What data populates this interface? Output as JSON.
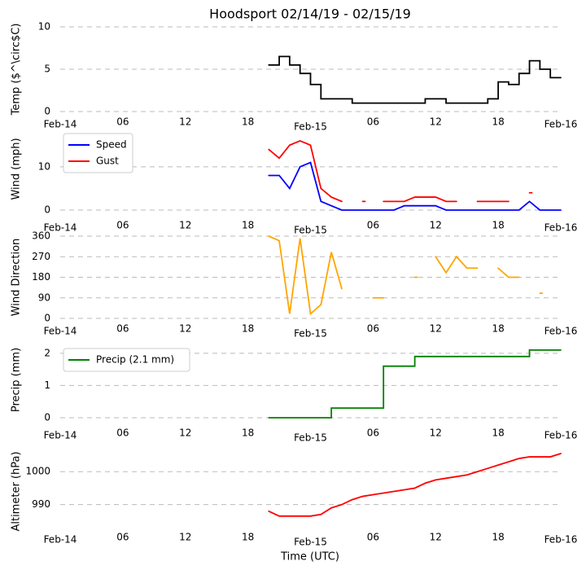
{
  "chart_data": [
    {
      "type": "line",
      "title": "Hoodsport 02/14/19 - 02/15/19",
      "ylabel": "Temp ($^\\circ$C)",
      "xlim": [
        "2019-02-14 00:00",
        "2019-02-16 00:00"
      ],
      "xticks": [
        {
          "value": "2019-02-14 00:00",
          "label": "Feb-14"
        },
        {
          "value": "2019-02-14 06:00",
          "label": "06"
        },
        {
          "value": "2019-02-14 12:00",
          "label": "12"
        },
        {
          "value": "2019-02-14 18:00",
          "label": "18"
        },
        {
          "value": "2019-02-15 00:00",
          "label": "Feb-15"
        },
        {
          "value": "2019-02-15 06:00",
          "label": "06"
        },
        {
          "value": "2019-02-15 12:00",
          "label": "12"
        },
        {
          "value": "2019-02-15 18:00",
          "label": "18"
        },
        {
          "value": "2019-02-16 00:00",
          "label": "Feb-16"
        }
      ],
      "ylim": [
        0,
        10
      ],
      "yticks": [
        0,
        5,
        10
      ],
      "grid": true,
      "drawstyle": "steps-post",
      "x": [
        "2019-02-14 20:00",
        "2019-02-14 21:00",
        "2019-02-14 22:00",
        "2019-02-14 23:00",
        "2019-02-15 00:00",
        "2019-02-15 01:00",
        "2019-02-15 02:00",
        "2019-02-15 03:00",
        "2019-02-15 04:00",
        "2019-02-15 05:00",
        "2019-02-15 06:00",
        "2019-02-15 07:00",
        "2019-02-15 08:00",
        "2019-02-15 09:00",
        "2019-02-15 10:00",
        "2019-02-15 11:00",
        "2019-02-15 12:00",
        "2019-02-15 13:00",
        "2019-02-15 14:00",
        "2019-02-15 15:00",
        "2019-02-15 16:00",
        "2019-02-15 17:00",
        "2019-02-15 18:00",
        "2019-02-15 19:00",
        "2019-02-15 20:00",
        "2019-02-15 21:00",
        "2019-02-15 22:00",
        "2019-02-15 23:00",
        "2019-02-16 00:00"
      ],
      "series": [
        {
          "color": "#000000",
          "values": [
            5.5,
            6.5,
            5.5,
            4.5,
            3.2,
            1.5,
            1.5,
            1.5,
            1,
            1,
            1,
            1,
            1,
            1,
            1,
            1.5,
            1.5,
            1,
            1,
            1,
            1,
            1.5,
            3.5,
            3.2,
            4.5,
            6,
            5,
            4,
            4
          ]
        }
      ]
    },
    {
      "type": "line",
      "ylabel": "Wind (mph)",
      "legend": "upper left",
      "xlim": [
        "2019-02-14 00:00",
        "2019-02-16 00:00"
      ],
      "xticks": [
        {
          "value": "2019-02-14 00:00",
          "label": "Feb-14"
        },
        {
          "value": "2019-02-14 06:00",
          "label": "06"
        },
        {
          "value": "2019-02-14 12:00",
          "label": "12"
        },
        {
          "value": "2019-02-14 18:00",
          "label": "18"
        },
        {
          "value": "2019-02-15 00:00",
          "label": "Feb-15"
        },
        {
          "value": "2019-02-15 06:00",
          "label": "06"
        },
        {
          "value": "2019-02-15 12:00",
          "label": "12"
        },
        {
          "value": "2019-02-15 18:00",
          "label": "18"
        },
        {
          "value": "2019-02-16 00:00",
          "label": "Feb-16"
        }
      ],
      "ylim": [
        0,
        19
      ],
      "yticks": [
        0,
        10
      ],
      "grid": true,
      "x": [
        "2019-02-14 20:00",
        "2019-02-14 21:00",
        "2019-02-14 22:00",
        "2019-02-14 23:00",
        "2019-02-15 00:00",
        "2019-02-15 01:00",
        "2019-02-15 02:00",
        "2019-02-15 03:00",
        "2019-02-15 04:00",
        "2019-02-15 05:00",
        "2019-02-15 06:00",
        "2019-02-15 07:00",
        "2019-02-15 08:00",
        "2019-02-15 09:00",
        "2019-02-15 10:00",
        "2019-02-15 11:00",
        "2019-02-15 12:00",
        "2019-02-15 13:00",
        "2019-02-15 14:00",
        "2019-02-15 15:00",
        "2019-02-15 16:00",
        "2019-02-15 17:00",
        "2019-02-15 18:00",
        "2019-02-15 19:00",
        "2019-02-15 20:00",
        "2019-02-15 21:00",
        "2019-02-15 22:00",
        "2019-02-15 23:00",
        "2019-02-16 00:00"
      ],
      "series": [
        {
          "name": "Speed",
          "color": "#0000ff",
          "values": [
            8,
            8,
            5,
            10,
            11,
            2,
            1,
            0,
            0,
            0,
            0,
            0,
            0,
            1,
            1,
            1,
            1,
            0,
            0,
            0,
            0,
            0,
            0,
            0,
            0,
            2,
            0,
            0,
            0
          ]
        },
        {
          "name": "Gust",
          "color": "#ff0000",
          "values": [
            14,
            12,
            15,
            16,
            15,
            5,
            3,
            2,
            null,
            2,
            null,
            2,
            2,
            2,
            3,
            3,
            3,
            2,
            2,
            null,
            2,
            2,
            2,
            2,
            null,
            4,
            null,
            null,
            null
          ]
        }
      ]
    },
    {
      "type": "line",
      "ylabel": "Wind Direction",
      "xlim": [
        "2019-02-14 00:00",
        "2019-02-16 00:00"
      ],
      "xticks": [
        {
          "value": "2019-02-14 00:00",
          "label": "Feb-14"
        },
        {
          "value": "2019-02-14 06:00",
          "label": "06"
        },
        {
          "value": "2019-02-14 12:00",
          "label": "12"
        },
        {
          "value": "2019-02-14 18:00",
          "label": "18"
        },
        {
          "value": "2019-02-15 00:00",
          "label": "Feb-15"
        },
        {
          "value": "2019-02-15 06:00",
          "label": "06"
        },
        {
          "value": "2019-02-15 12:00",
          "label": "12"
        },
        {
          "value": "2019-02-15 18:00",
          "label": "18"
        },
        {
          "value": "2019-02-16 00:00",
          "label": "Feb-16"
        }
      ],
      "ylim": [
        0,
        360
      ],
      "yticks": [
        0,
        90,
        180,
        270,
        360
      ],
      "grid": true,
      "x": [
        "2019-02-14 20:00",
        "2019-02-14 21:00",
        "2019-02-14 22:00",
        "2019-02-14 23:00",
        "2019-02-15 00:00",
        "2019-02-15 01:00",
        "2019-02-15 02:00",
        "2019-02-15 03:00",
        "2019-02-15 04:00",
        "2019-02-15 05:00",
        "2019-02-15 06:00",
        "2019-02-15 07:00",
        "2019-02-15 08:00",
        "2019-02-15 09:00",
        "2019-02-15 10:00",
        "2019-02-15 11:00",
        "2019-02-15 12:00",
        "2019-02-15 13:00",
        "2019-02-15 14:00",
        "2019-02-15 15:00",
        "2019-02-15 16:00",
        "2019-02-15 17:00",
        "2019-02-15 18:00",
        "2019-02-15 19:00",
        "2019-02-15 20:00",
        "2019-02-15 21:00",
        "2019-02-15 22:00",
        "2019-02-15 23:00",
        "2019-02-16 00:00"
      ],
      "series": [
        {
          "color": "#ffa500",
          "values": [
            360,
            340,
            20,
            350,
            20,
            60,
            290,
            130,
            null,
            null,
            90,
            90,
            null,
            null,
            180,
            null,
            270,
            200,
            270,
            220,
            220,
            null,
            220,
            180,
            180,
            null,
            110,
            null,
            null
          ]
        }
      ]
    },
    {
      "type": "line",
      "ylabel": "Precip (mm)",
      "legend": "upper left",
      "drawstyle": "steps-post",
      "xlim": [
        "2019-02-14 00:00",
        "2019-02-16 00:00"
      ],
      "xticks": [
        {
          "value": "2019-02-14 00:00",
          "label": "Feb-14"
        },
        {
          "value": "2019-02-14 06:00",
          "label": "06"
        },
        {
          "value": "2019-02-14 12:00",
          "label": "12"
        },
        {
          "value": "2019-02-14 18:00",
          "label": "18"
        },
        {
          "value": "2019-02-15 00:00",
          "label": "Feb-15"
        },
        {
          "value": "2019-02-15 06:00",
          "label": "06"
        },
        {
          "value": "2019-02-15 12:00",
          "label": "12"
        },
        {
          "value": "2019-02-15 18:00",
          "label": "18"
        },
        {
          "value": "2019-02-16 00:00",
          "label": "Feb-16"
        }
      ],
      "ylim": [
        0,
        2.35
      ],
      "yticks": [
        0,
        1,
        2
      ],
      "grid": true,
      "x": [
        "2019-02-14 20:00",
        "2019-02-14 21:00",
        "2019-02-14 22:00",
        "2019-02-14 23:00",
        "2019-02-15 00:00",
        "2019-02-15 01:00",
        "2019-02-15 02:00",
        "2019-02-15 03:00",
        "2019-02-15 04:00",
        "2019-02-15 05:00",
        "2019-02-15 06:00",
        "2019-02-15 07:00",
        "2019-02-15 08:00",
        "2019-02-15 09:00",
        "2019-02-15 10:00",
        "2019-02-15 11:00",
        "2019-02-15 12:00",
        "2019-02-15 13:00",
        "2019-02-15 14:00",
        "2019-02-15 15:00",
        "2019-02-15 16:00",
        "2019-02-15 17:00",
        "2019-02-15 18:00",
        "2019-02-15 19:00",
        "2019-02-15 20:00",
        "2019-02-15 21:00",
        "2019-02-15 22:00",
        "2019-02-15 23:00",
        "2019-02-16 00:00"
      ],
      "series": [
        {
          "name": "Precip (2.1 mm)",
          "color": "#008000",
          "values": [
            0,
            0,
            0,
            0,
            0,
            0,
            0.3,
            0.3,
            0.3,
            0.3,
            0.3,
            1.6,
            1.6,
            1.6,
            1.9,
            1.9,
            1.9,
            1.9,
            1.9,
            1.9,
            1.9,
            1.9,
            1.9,
            1.9,
            1.9,
            2.1,
            2.1,
            2.1,
            2.1
          ]
        }
      ]
    },
    {
      "type": "line",
      "ylabel": "Altimeter (hPa)",
      "xlabel": "Time (UTC)",
      "xlim": [
        "2019-02-14 00:00",
        "2019-02-16 00:00"
      ],
      "xticks": [
        {
          "value": "2019-02-14 00:00",
          "label": "Feb-14"
        },
        {
          "value": "2019-02-14 06:00",
          "label": "06"
        },
        {
          "value": "2019-02-14 12:00",
          "label": "12"
        },
        {
          "value": "2019-02-14 18:00",
          "label": "18"
        },
        {
          "value": "2019-02-15 00:00",
          "label": "Feb-15"
        },
        {
          "value": "2019-02-15 06:00",
          "label": "06"
        },
        {
          "value": "2019-02-15 12:00",
          "label": "12"
        },
        {
          "value": "2019-02-15 18:00",
          "label": "18"
        },
        {
          "value": "2019-02-16 00:00",
          "label": "Feb-16"
        }
      ],
      "ylim": [
        982.5,
        1005.5
      ],
      "yticks": [
        990,
        1000
      ],
      "grid": true,
      "x": [
        "2019-02-14 20:00",
        "2019-02-14 21:00",
        "2019-02-14 22:00",
        "2019-02-14 23:00",
        "2019-02-15 00:00",
        "2019-02-15 01:00",
        "2019-02-15 02:00",
        "2019-02-15 03:00",
        "2019-02-15 04:00",
        "2019-02-15 05:00",
        "2019-02-15 06:00",
        "2019-02-15 07:00",
        "2019-02-15 08:00",
        "2019-02-15 09:00",
        "2019-02-15 10:00",
        "2019-02-15 11:00",
        "2019-02-15 12:00",
        "2019-02-15 13:00",
        "2019-02-15 14:00",
        "2019-02-15 15:00",
        "2019-02-15 16:00",
        "2019-02-15 17:00",
        "2019-02-15 18:00",
        "2019-02-15 19:00",
        "2019-02-15 20:00",
        "2019-02-15 21:00",
        "2019-02-15 22:00",
        "2019-02-15 23:00",
        "2019-02-16 00:00"
      ],
      "series": [
        {
          "color": "#ff0000",
          "values": [
            988,
            986.5,
            986.5,
            986.5,
            986.5,
            987,
            989,
            990,
            991.5,
            992.5,
            993,
            993.5,
            994,
            994.5,
            995,
            996.5,
            997.5,
            998,
            998.5,
            999,
            1000,
            1001,
            1002,
            1003,
            1004,
            1004.5,
            1004.5,
            1004.5,
            1005.5
          ]
        }
      ]
    }
  ]
}
